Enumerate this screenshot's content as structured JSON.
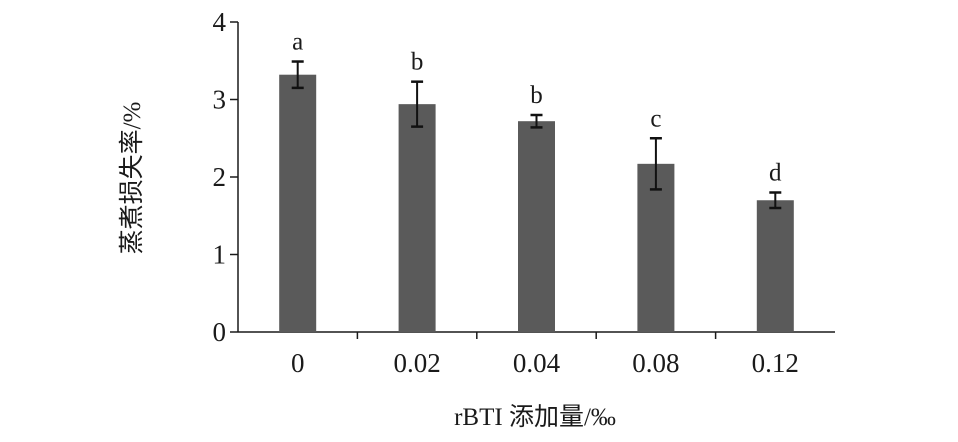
{
  "chart_data": {
    "type": "bar",
    "categories": [
      "0",
      "0.02",
      "0.04",
      "0.08",
      "0.12"
    ],
    "values": [
      3.32,
      2.94,
      2.72,
      2.17,
      1.7
    ],
    "errors": [
      0.17,
      0.29,
      0.08,
      0.33,
      0.1
    ],
    "significance": [
      "a",
      "b",
      "b",
      "c",
      "d"
    ],
    "xlabel": "rBTI 添加量/‰",
    "ylabel": "蒸煮损失率/%",
    "ylim": [
      0,
      4
    ],
    "yticks": [
      "0",
      "1",
      "2",
      "3",
      "4"
    ],
    "bar_color": "#5a5a5a",
    "grid": false,
    "legend": "none"
  }
}
